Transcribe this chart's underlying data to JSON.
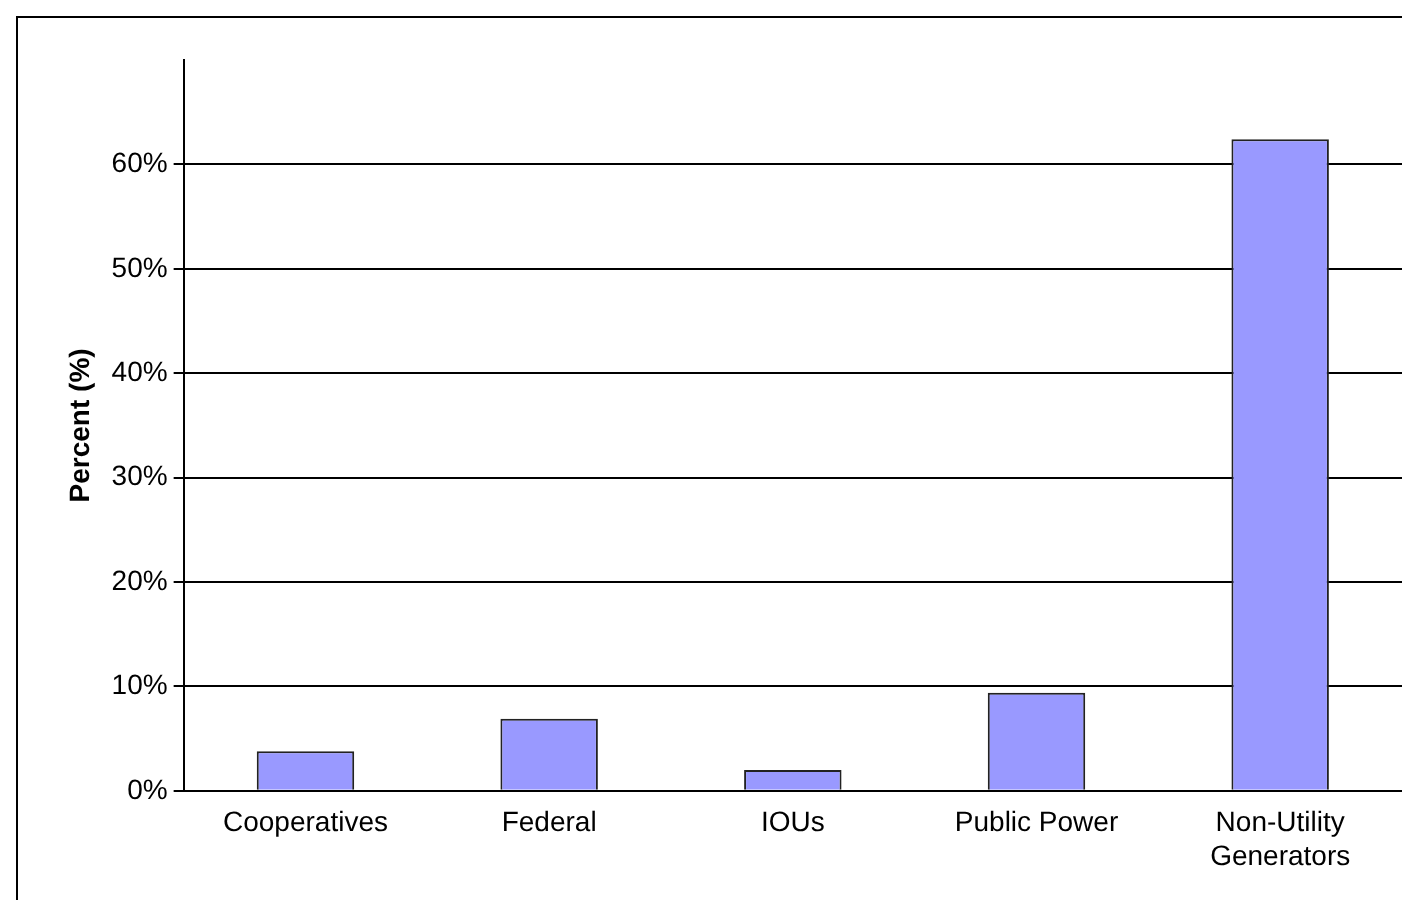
{
  "chart_data": {
    "type": "bar",
    "ylabel": "Percent (%)",
    "categories": [
      "Cooperatives",
      "Federal",
      "IOUs",
      "Public Power",
      "Non-Utility Generators"
    ],
    "series": [
      {
        "color": "#9999ff",
        "values": [
          3.8,
          6.9,
          2.0,
          9.4,
          62.4
        ]
      }
    ],
    "ylim": [
      0,
      70
    ],
    "yticks": [
      {
        "value": 0,
        "label": "0%"
      },
      {
        "value": 10,
        "label": "10%"
      },
      {
        "value": 20,
        "label": "20%"
      },
      {
        "value": 30,
        "label": "30%"
      },
      {
        "value": 40,
        "label": "40%"
      },
      {
        "value": 50,
        "label": "50%"
      },
      {
        "value": 60,
        "label": "60%"
      }
    ],
    "grid": "y",
    "legend": false
  }
}
